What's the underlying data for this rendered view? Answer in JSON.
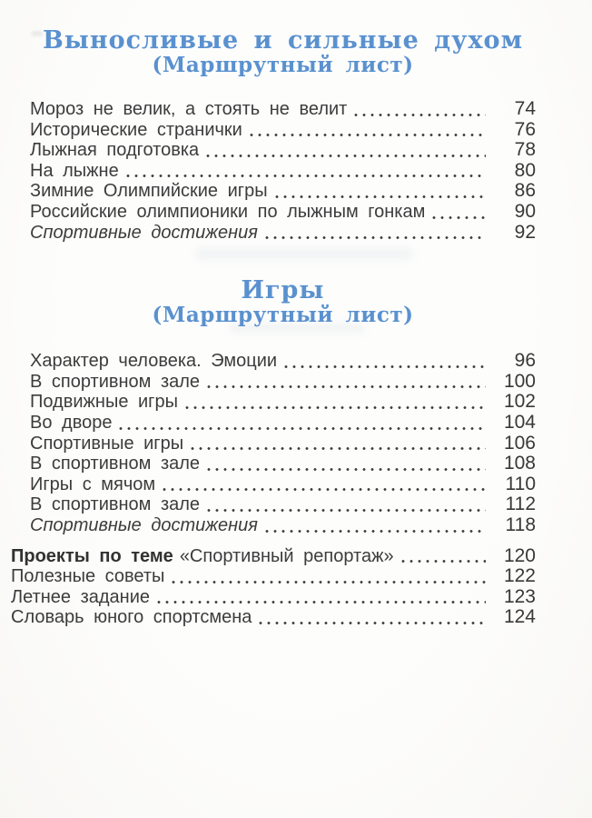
{
  "page": {
    "bg_color": "#fcfbf8",
    "text_color": "#3c3c3c",
    "accent_color": "#5a91cf"
  },
  "sections": [
    {
      "title_line1": "Выносливые и сильные духом",
      "title_line2": "(Маршрутный лист)",
      "items": [
        {
          "title": "Мороз не велик, а стоять не велит",
          "page": "74"
        },
        {
          "title": "Исторические странички",
          "page": "76"
        },
        {
          "title": "Лыжная подготовка",
          "page": "78"
        },
        {
          "title": "На лыжне",
          "page": "80"
        },
        {
          "title": "Зимние Олимпийские игры",
          "page": "86"
        },
        {
          "title": "Российские олимпионики по лыжным гонкам",
          "page": "90"
        },
        {
          "title": "Спортивные достижения",
          "page": "92",
          "style": "italic"
        }
      ]
    },
    {
      "title_line1": "Игры",
      "title_line2": "(Маршрутный лист)",
      "items": [
        {
          "title": "Характер человека. Эмоции",
          "page": "96"
        },
        {
          "title": "В спортивном зале",
          "page": "100"
        },
        {
          "title": "Подвижные игры",
          "page": "102"
        },
        {
          "title": "Во дворе",
          "page": "104"
        },
        {
          "title": "Спортивные игры",
          "page": "106"
        },
        {
          "title": "В спортивном зале",
          "page": "108"
        },
        {
          "title": "Игры с мячом",
          "page": "110"
        },
        {
          "title": "В спортивном зале",
          "page": "112"
        },
        {
          "title": "Спортивные достижения",
          "page": "118",
          "style": "italic"
        }
      ]
    }
  ],
  "tail_items": [
    {
      "title_bold": "Проекты по теме",
      "title_rest": "«Спортивный репортаж»",
      "page": "120"
    },
    {
      "title": "Полезные советы",
      "page": "122"
    },
    {
      "title": "Летнее задание",
      "page": "123"
    },
    {
      "title": "Словарь юного спортсмена",
      "page": "124"
    }
  ]
}
